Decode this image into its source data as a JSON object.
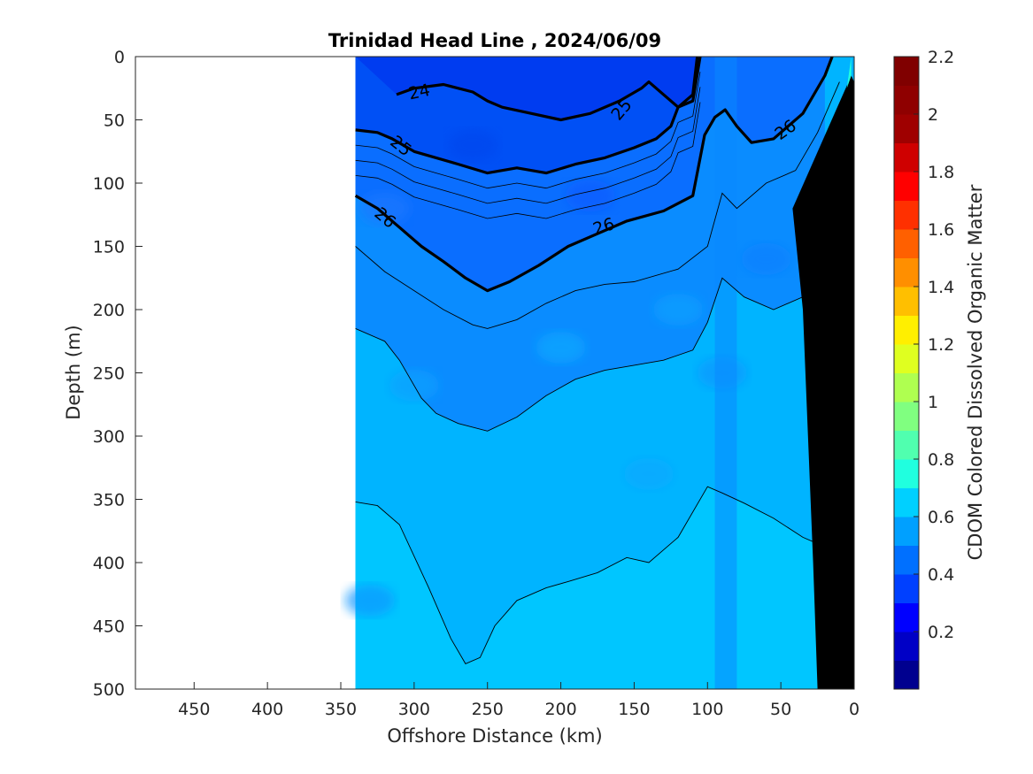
{
  "chart_data": {
    "type": "heatmap",
    "title": "Trinidad Head Line , 2024/06/09",
    "xlabel": "Offshore Distance (km)",
    "ylabel": "Depth (m)",
    "xlim": [
      490,
      0
    ],
    "ylim": [
      500,
      0
    ],
    "x_reversed": true,
    "y_reversed": true,
    "x_ticks": [
      450,
      400,
      350,
      300,
      250,
      200,
      150,
      100,
      50,
      0
    ],
    "y_ticks": [
      0,
      50,
      100,
      150,
      200,
      250,
      300,
      350,
      400,
      450,
      500
    ],
    "data_extent_km": [
      340,
      0
    ],
    "colorbar": {
      "label": "CDOM Colored Dissolved Organic Matter",
      "range": [
        0,
        2.2
      ],
      "ticks": [
        0.2,
        0.4,
        0.6,
        0.8,
        1,
        1.2,
        1.4,
        1.6,
        1.8,
        2,
        2.2
      ],
      "tick_labels": [
        "0.2",
        "0.4",
        "0.6",
        "0.8",
        "1",
        "1.2",
        "1.4",
        "1.6",
        "1.8",
        "2",
        "2.2"
      ],
      "colors": [
        "#00008f",
        "#0000c6",
        "#0000ff",
        "#0040ff",
        "#0070ff",
        "#00a0ff",
        "#00d0ff",
        "#20ffdf",
        "#50ffaf",
        "#80ff80",
        "#afff50",
        "#dfff20",
        "#ffef00",
        "#ffbf00",
        "#ff8f00",
        "#ff6000",
        "#ff3000",
        "#ff0000",
        "#cf0000",
        "#9f0000",
        "#8f0000",
        "#800000"
      ]
    },
    "contours": {
      "sigma_theta_levels": [
        24,
        25,
        26
      ],
      "labels": [
        "24",
        "25",
        "25",
        "26",
        "26",
        "26"
      ],
      "line_24": [
        [
          312,
          30
        ],
        [
          300,
          25
        ],
        [
          280,
          22
        ],
        [
          260,
          28
        ],
        [
          250,
          35
        ],
        [
          240,
          40
        ],
        [
          220,
          45
        ],
        [
          200,
          50
        ],
        [
          180,
          45
        ],
        [
          160,
          35
        ],
        [
          145,
          25
        ],
        [
          140,
          20
        ],
        [
          130,
          30
        ],
        [
          120,
          40
        ],
        [
          110,
          30
        ],
        [
          107,
          0
        ]
      ],
      "line_25": [
        [
          340,
          58
        ],
        [
          325,
          60
        ],
        [
          315,
          65
        ],
        [
          300,
          75
        ],
        [
          285,
          80
        ],
        [
          270,
          85
        ],
        [
          250,
          92
        ],
        [
          230,
          88
        ],
        [
          210,
          92
        ],
        [
          190,
          85
        ],
        [
          170,
          80
        ],
        [
          150,
          72
        ],
        [
          135,
          65
        ],
        [
          125,
          55
        ],
        [
          120,
          40
        ],
        [
          110,
          35
        ],
        [
          105,
          0
        ]
      ],
      "line_26": [
        [
          340,
          110
        ],
        [
          325,
          120
        ],
        [
          310,
          135
        ],
        [
          295,
          150
        ],
        [
          280,
          162
        ],
        [
          265,
          175
        ],
        [
          250,
          185
        ],
        [
          235,
          178
        ],
        [
          215,
          165
        ],
        [
          195,
          150
        ],
        [
          175,
          140
        ],
        [
          155,
          130
        ],
        [
          130,
          122
        ],
        [
          110,
          110
        ],
        [
          102,
          62
        ],
        [
          95,
          48
        ],
        [
          88,
          42
        ],
        [
          80,
          55
        ],
        [
          70,
          68
        ],
        [
          55,
          65
        ],
        [
          35,
          45
        ],
        [
          20,
          15
        ],
        [
          15,
          0
        ]
      ],
      "thin_lines": [
        [
          [
            340,
            150
          ],
          [
            320,
            170
          ],
          [
            300,
            185
          ],
          [
            280,
            200
          ],
          [
            260,
            212
          ],
          [
            250,
            215
          ],
          [
            230,
            208
          ],
          [
            210,
            195
          ],
          [
            190,
            185
          ],
          [
            170,
            180
          ],
          [
            150,
            178
          ],
          [
            120,
            168
          ],
          [
            100,
            150
          ],
          [
            90,
            108
          ],
          [
            80,
            120
          ],
          [
            60,
            100
          ],
          [
            40,
            90
          ],
          [
            25,
            60
          ],
          [
            10,
            20
          ]
        ],
        [
          [
            340,
            215
          ],
          [
            320,
            225
          ],
          [
            310,
            240
          ],
          [
            295,
            270
          ],
          [
            285,
            282
          ],
          [
            270,
            290
          ],
          [
            250,
            296
          ],
          [
            230,
            285
          ],
          [
            210,
            268
          ],
          [
            190,
            255
          ],
          [
            170,
            248
          ],
          [
            150,
            244
          ],
          [
            130,
            240
          ],
          [
            110,
            232
          ],
          [
            100,
            210
          ],
          [
            90,
            175
          ],
          [
            75,
            190
          ],
          [
            55,
            200
          ],
          [
            35,
            190
          ],
          [
            20,
            140
          ]
        ],
        [
          [
            340,
            352
          ],
          [
            325,
            355
          ],
          [
            310,
            370
          ],
          [
            300,
            395
          ],
          [
            290,
            420
          ],
          [
            275,
            460
          ],
          [
            265,
            480
          ],
          [
            255,
            475
          ],
          [
            245,
            450
          ],
          [
            230,
            430
          ],
          [
            210,
            420
          ],
          [
            195,
            415
          ],
          [
            175,
            408
          ],
          [
            155,
            396
          ],
          [
            140,
            400
          ],
          [
            120,
            380
          ],
          [
            100,
            340
          ],
          [
            90,
            345
          ],
          [
            75,
            353
          ],
          [
            55,
            365
          ],
          [
            35,
            380
          ],
          [
            25,
            385
          ]
        ]
      ]
    }
  }
}
